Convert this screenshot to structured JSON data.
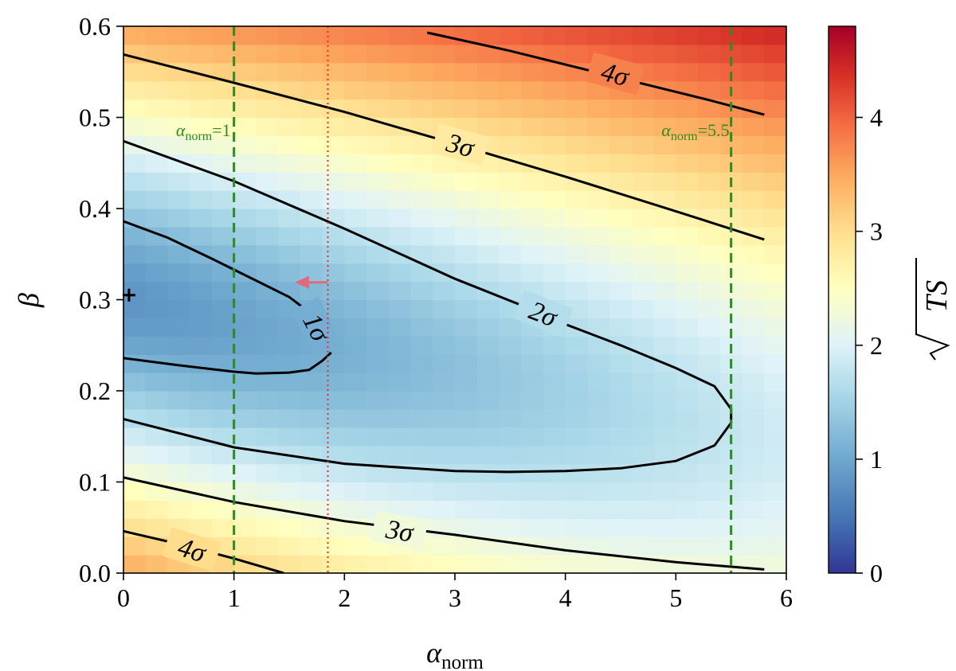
{
  "chart_data": {
    "type": "heatmap",
    "title": "",
    "xlabel": "α",
    "xlabel_sub": "norm",
    "ylabel": "β",
    "xlim": [
      0,
      6
    ],
    "ylim": [
      0,
      0.6
    ],
    "xticks": [
      0,
      1,
      2,
      3,
      4,
      5,
      6
    ],
    "yticks": [
      0.0,
      0.1,
      0.2,
      0.3,
      0.4,
      0.5,
      0.6
    ],
    "xtick_labels": [
      "0",
      "1",
      "2",
      "3",
      "4",
      "5",
      "6"
    ],
    "ytick_labels": [
      "0.0",
      "0.1",
      "0.2",
      "0.3",
      "0.4",
      "0.5",
      "0.6"
    ],
    "grid_cols": 30,
    "grid_rows": 30,
    "colorscale": "RdYlBu_r",
    "colorbar": {
      "label": "√TS",
      "range": [
        0,
        4.8
      ],
      "ticks": [
        0,
        1,
        2,
        3,
        4
      ],
      "tick_labels": [
        "0",
        "1",
        "2",
        "3",
        "4"
      ]
    },
    "best_fit_marker": {
      "x": 0.05,
      "y": 0.305,
      "symbol": "+"
    },
    "contours": [
      {
        "level": "1σ",
        "label": "1σ",
        "points": [
          [
            0,
            0.386
          ],
          [
            0.4,
            0.368
          ],
          [
            0.8,
            0.345
          ],
          [
            1.2,
            0.321
          ],
          [
            1.5,
            0.303
          ],
          [
            1.62,
            0.292
          ]
        ],
        "points_lower": [
          [
            0,
            0.236
          ],
          [
            0.5,
            0.228
          ],
          [
            1.0,
            0.221
          ],
          [
            1.2,
            0.219
          ],
          [
            1.5,
            0.22
          ],
          [
            1.68,
            0.223
          ],
          [
            1.8,
            0.233
          ],
          [
            1.88,
            0.242
          ]
        ]
      },
      {
        "level": "2σ",
        "label": "2σ",
        "points": [
          [
            0,
            0.474
          ],
          [
            1.0,
            0.43
          ],
          [
            2.0,
            0.378
          ],
          [
            3.0,
            0.323
          ],
          [
            3.6,
            0.294
          ],
          [
            4.0,
            0.273
          ],
          [
            4.5,
            0.25
          ],
          [
            5.0,
            0.225
          ],
          [
            5.35,
            0.205
          ],
          [
            5.5,
            0.18
          ],
          [
            5.5,
            0.165
          ],
          [
            5.35,
            0.14
          ],
          [
            5.0,
            0.123
          ],
          [
            4.5,
            0.115
          ],
          [
            4.0,
            0.112
          ],
          [
            3.5,
            0.111
          ],
          [
            3.0,
            0.112
          ],
          [
            2.0,
            0.12
          ],
          [
            1.0,
            0.138
          ],
          [
            0,
            0.169
          ]
        ]
      },
      {
        "level": "3σ",
        "label": "3σ",
        "points": [
          [
            0,
            0.569
          ],
          [
            1.0,
            0.538
          ],
          [
            2.0,
            0.506
          ],
          [
            3.0,
            0.471
          ],
          [
            4.0,
            0.435
          ],
          [
            5.0,
            0.397
          ],
          [
            5.8,
            0.366
          ]
        ]
      },
      {
        "level": "3σ",
        "label": "3σ",
        "points": [
          [
            0,
            0.105
          ],
          [
            1.0,
            0.078
          ],
          [
            2.0,
            0.057
          ],
          [
            3.0,
            0.042
          ],
          [
            4.0,
            0.025
          ],
          [
            5.0,
            0.012
          ],
          [
            5.8,
            0.004
          ]
        ]
      },
      {
        "level": "4σ",
        "label": "4σ",
        "points": [
          [
            2.75,
            0.593
          ],
          [
            3.5,
            0.573
          ],
          [
            4.5,
            0.543
          ],
          [
            5.3,
            0.519
          ],
          [
            5.8,
            0.503
          ]
        ]
      },
      {
        "level": "4σ",
        "label": "4σ",
        "points": [
          [
            0,
            0.046
          ],
          [
            0.5,
            0.032
          ],
          [
            1.0,
            0.016
          ],
          [
            1.45,
            0.0
          ]
        ]
      }
    ],
    "reference_lines": [
      {
        "x": 1.0,
        "label": "α",
        "label_sub": "norm",
        "label_tail": "=1",
        "style": "dashed",
        "color": "#2e8b1f"
      },
      {
        "x": 5.5,
        "label": "α",
        "label_sub": "norm",
        "label_tail": "=5.5",
        "style": "dashed",
        "color": "#2e8b1f"
      },
      {
        "x": 1.85,
        "label": "",
        "style": "dotted",
        "color": "#e0302a"
      }
    ],
    "arrow": {
      "from": [
        1.85,
        0.319
      ],
      "to": [
        1.55,
        0.319
      ],
      "color": "#e06a7a"
    }
  }
}
